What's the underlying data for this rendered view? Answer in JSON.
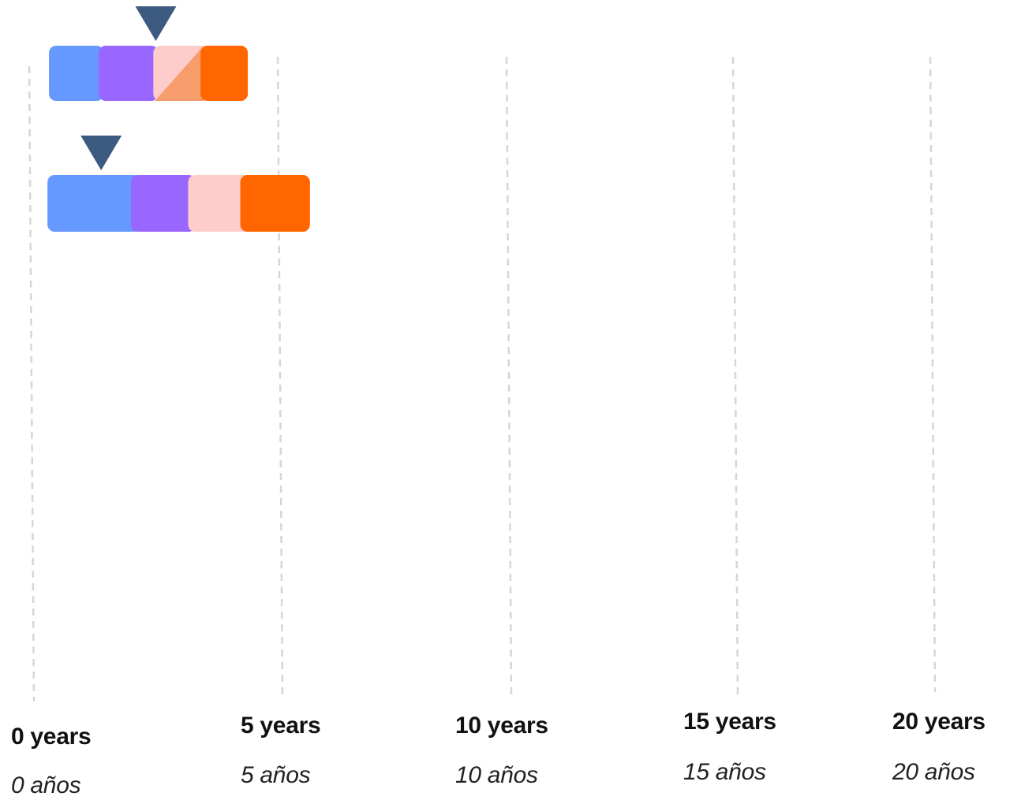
{
  "axis": {
    "ticks": [
      {
        "value": 0,
        "en": "0 years",
        "es": "0 años"
      },
      {
        "value": 5,
        "en": "5 years",
        "es": "5 años"
      },
      {
        "value": 10,
        "en": "10 years",
        "es": "10 años"
      },
      {
        "value": 15,
        "en": "15 years",
        "es": "15 años"
      },
      {
        "value": 20,
        "en": "20 years",
        "es": "20 años"
      }
    ]
  },
  "colors": {
    "gridline": "#d6d6d6",
    "marker": "#3d5a80",
    "stage_1": "#6699ff",
    "stage_2": "#9966ff",
    "stage_3": "#ffcccc",
    "stage_3_overlap": "#f79c6b",
    "stage_4": "#ff6600"
  },
  "rows": [
    {
      "marker_at": 2.5,
      "segments": [
        {
          "stage": "stage_1",
          "start": 0.35,
          "end": 1.45
        },
        {
          "stage": "stage_2",
          "start": 1.35,
          "end": 2.55
        },
        {
          "stage": "stage_3",
          "start": 2.45,
          "end": 3.6,
          "overlap_triangle": true
        },
        {
          "stage": "stage_4",
          "start": 3.4,
          "end": 4.35
        }
      ]
    },
    {
      "marker_at": 1.4,
      "segments": [
        {
          "stage": "stage_1",
          "start": 0.32,
          "end": 2.2
        },
        {
          "stage": "stage_2",
          "start": 2.0,
          "end": 3.3
        },
        {
          "stage": "stage_3",
          "start": 3.15,
          "end": 4.4
        },
        {
          "stage": "stage_4",
          "start": 4.2,
          "end": 5.65
        }
      ]
    }
  ]
}
